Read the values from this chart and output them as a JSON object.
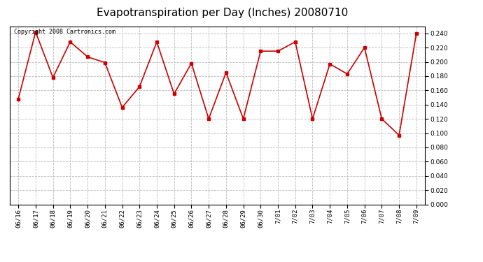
{
  "title": "Evapotranspiration per Day (Inches) 20080710",
  "copyright_text": "Copyright 2008 Cartronics.com",
  "x_labels": [
    "06/16",
    "06/17",
    "06/18",
    "06/19",
    "06/20",
    "06/21",
    "06/22",
    "06/23",
    "06/24",
    "06/25",
    "06/26",
    "06/27",
    "06/28",
    "06/29",
    "06/30",
    "7/01",
    "7/02",
    "7/03",
    "7/04",
    "7/05",
    "7/06",
    "7/07",
    "7/08",
    "7/09"
  ],
  "y_values": [
    0.148,
    0.242,
    0.178,
    0.228,
    0.207,
    0.199,
    0.136,
    0.165,
    0.228,
    0.155,
    0.198,
    0.12,
    0.185,
    0.12,
    0.215,
    0.215,
    0.228,
    0.12,
    0.197,
    0.183,
    0.22,
    0.12,
    0.097,
    0.24
  ],
  "line_color": "#cc0000",
  "marker": "s",
  "marker_size": 2.5,
  "background_color": "#ffffff",
  "plot_background": "#ffffff",
  "grid_color": "#bbbbbb",
  "grid_style": "--",
  "ylim": [
    0.0,
    0.25
  ],
  "yticks": [
    0.0,
    0.02,
    0.04,
    0.06,
    0.08,
    0.1,
    0.12,
    0.14,
    0.16,
    0.18,
    0.2,
    0.22,
    0.24
  ],
  "title_fontsize": 11,
  "tick_fontsize": 6.5,
  "copyright_fontsize": 6
}
